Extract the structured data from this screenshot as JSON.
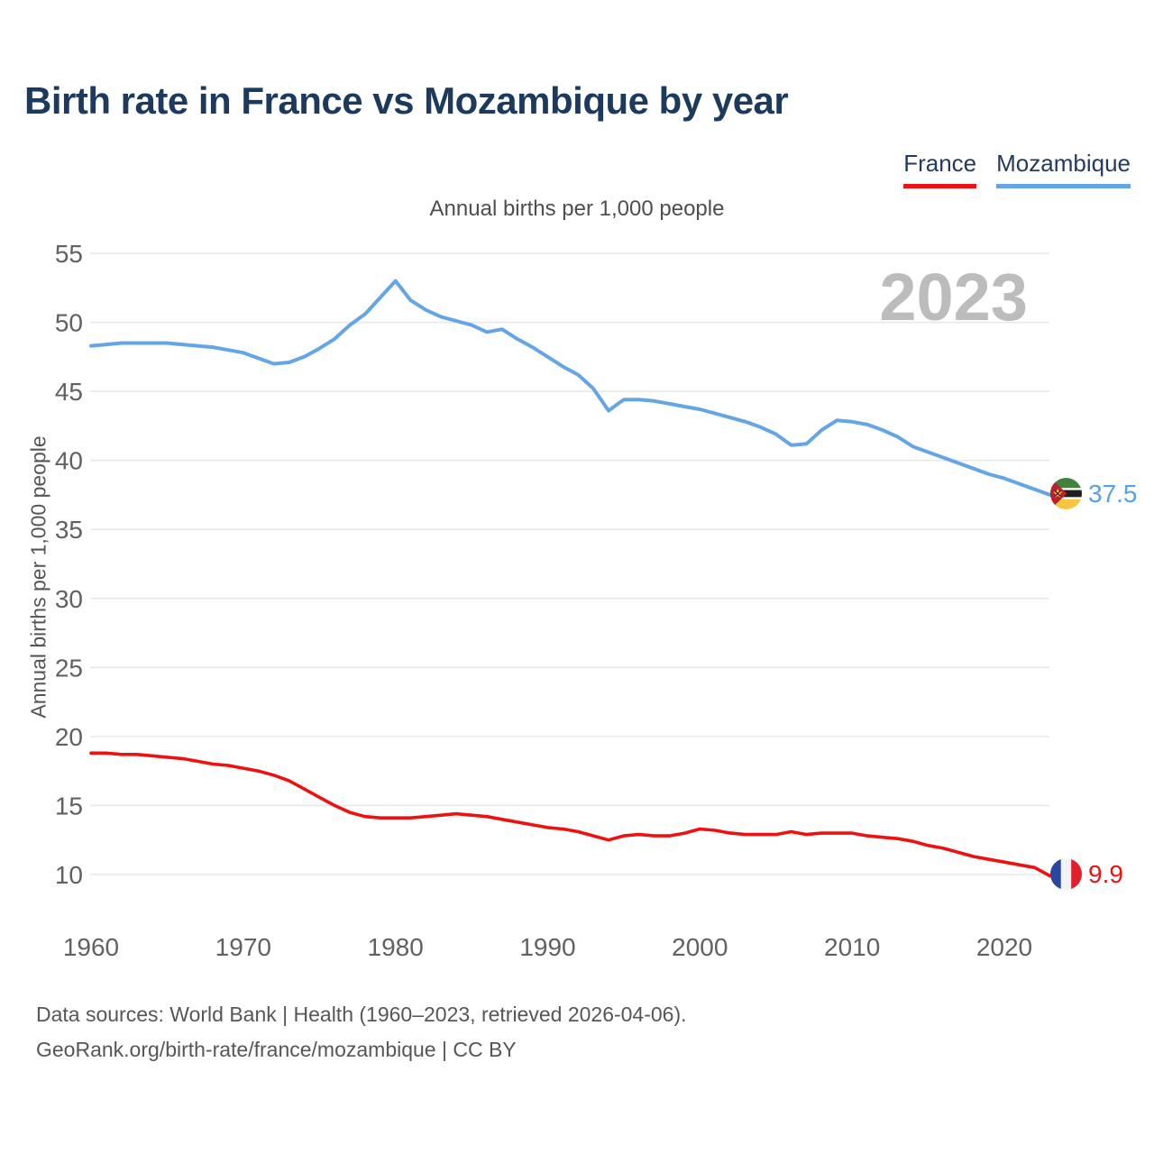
{
  "header": {
    "title": "Birth rate in France vs Mozambique by year"
  },
  "legend": {
    "items": [
      {
        "label": "France",
        "color": "#ee1111"
      },
      {
        "label": "Mozambique",
        "color": "#64a5e6"
      }
    ]
  },
  "chart": {
    "subtitle": "Annual births per 1,000 people",
    "y_axis_title": "Annual births per 1,000 people",
    "year_watermark": "2023",
    "end_labels": [
      {
        "series": "Mozambique",
        "value": "37.5",
        "color": "#55a0e6",
        "flag_icon": "mozambique-flag-icon"
      },
      {
        "series": "France",
        "value": "9.9",
        "color": "#ee1111",
        "flag_icon": "france-flag-icon"
      }
    ]
  },
  "chart_data": {
    "type": "line",
    "title": "Birth rate in France vs Mozambique by year",
    "subtitle": "Annual births per 1,000 people",
    "xlabel": "",
    "ylabel": "Annual births per 1,000 people",
    "x": [
      1960,
      1961,
      1962,
      1963,
      1964,
      1965,
      1966,
      1967,
      1968,
      1969,
      1970,
      1971,
      1972,
      1973,
      1974,
      1975,
      1976,
      1977,
      1978,
      1979,
      1980,
      1981,
      1982,
      1983,
      1984,
      1985,
      1986,
      1987,
      1988,
      1989,
      1990,
      1991,
      1992,
      1993,
      1994,
      1995,
      1996,
      1997,
      1998,
      1999,
      2000,
      2001,
      2002,
      2003,
      2004,
      2005,
      2006,
      2007,
      2008,
      2009,
      2010,
      2011,
      2012,
      2013,
      2014,
      2015,
      2016,
      2017,
      2018,
      2019,
      2020,
      2021,
      2022,
      2023
    ],
    "series": [
      {
        "name": "France",
        "color": "#ee1111",
        "end_value": 9.9,
        "values": [
          18.8,
          18.8,
          18.7,
          18.7,
          18.6,
          18.5,
          18.4,
          18.2,
          18.0,
          17.9,
          17.7,
          17.5,
          17.2,
          16.8,
          16.2,
          15.6,
          15.0,
          14.5,
          14.2,
          14.1,
          14.1,
          14.1,
          14.2,
          14.3,
          14.4,
          14.3,
          14.2,
          14.0,
          13.8,
          13.6,
          13.4,
          13.3,
          13.1,
          12.8,
          12.5,
          12.8,
          12.9,
          12.8,
          12.8,
          13.0,
          13.3,
          13.2,
          13.0,
          12.9,
          12.9,
          12.9,
          13.1,
          12.9,
          13.0,
          13.0,
          13.0,
          12.8,
          12.7,
          12.6,
          12.4,
          12.1,
          11.9,
          11.6,
          11.3,
          11.1,
          10.9,
          10.7,
          10.5,
          9.9
        ]
      },
      {
        "name": "Mozambique",
        "color": "#64a5e6",
        "end_value": 37.5,
        "values": [
          48.3,
          48.4,
          48.5,
          48.5,
          48.5,
          48.5,
          48.4,
          48.3,
          48.2,
          48.0,
          47.8,
          47.4,
          47.0,
          47.1,
          47.5,
          48.1,
          48.8,
          49.8,
          50.6,
          51.8,
          53.0,
          51.6,
          50.9,
          50.4,
          50.1,
          49.8,
          49.3,
          49.5,
          48.8,
          48.2,
          47.5,
          46.8,
          46.2,
          45.2,
          43.6,
          44.4,
          44.4,
          44.3,
          44.1,
          43.9,
          43.7,
          43.4,
          43.1,
          42.8,
          42.4,
          41.9,
          41.1,
          41.2,
          42.2,
          42.9,
          42.8,
          42.6,
          42.2,
          41.7,
          41.0,
          40.6,
          40.2,
          39.8,
          39.4,
          39.0,
          38.7,
          38.3,
          37.9,
          37.5
        ]
      }
    ],
    "ylim": [
      10,
      55
    ],
    "yticks": [
      10,
      15,
      20,
      25,
      30,
      35,
      40,
      45,
      50,
      55
    ],
    "xticks": [
      1960,
      1970,
      1980,
      1990,
      2000,
      2010,
      2020
    ],
    "grid": "horizontal",
    "legend_position": "top-right",
    "watermark": "2023"
  },
  "footer": {
    "line1": "Data sources: World Bank | Health (1960–2023, retrieved 2026-04-06).",
    "line2": "GeoRank.org/birth-rate/france/mozambique | CC BY"
  }
}
